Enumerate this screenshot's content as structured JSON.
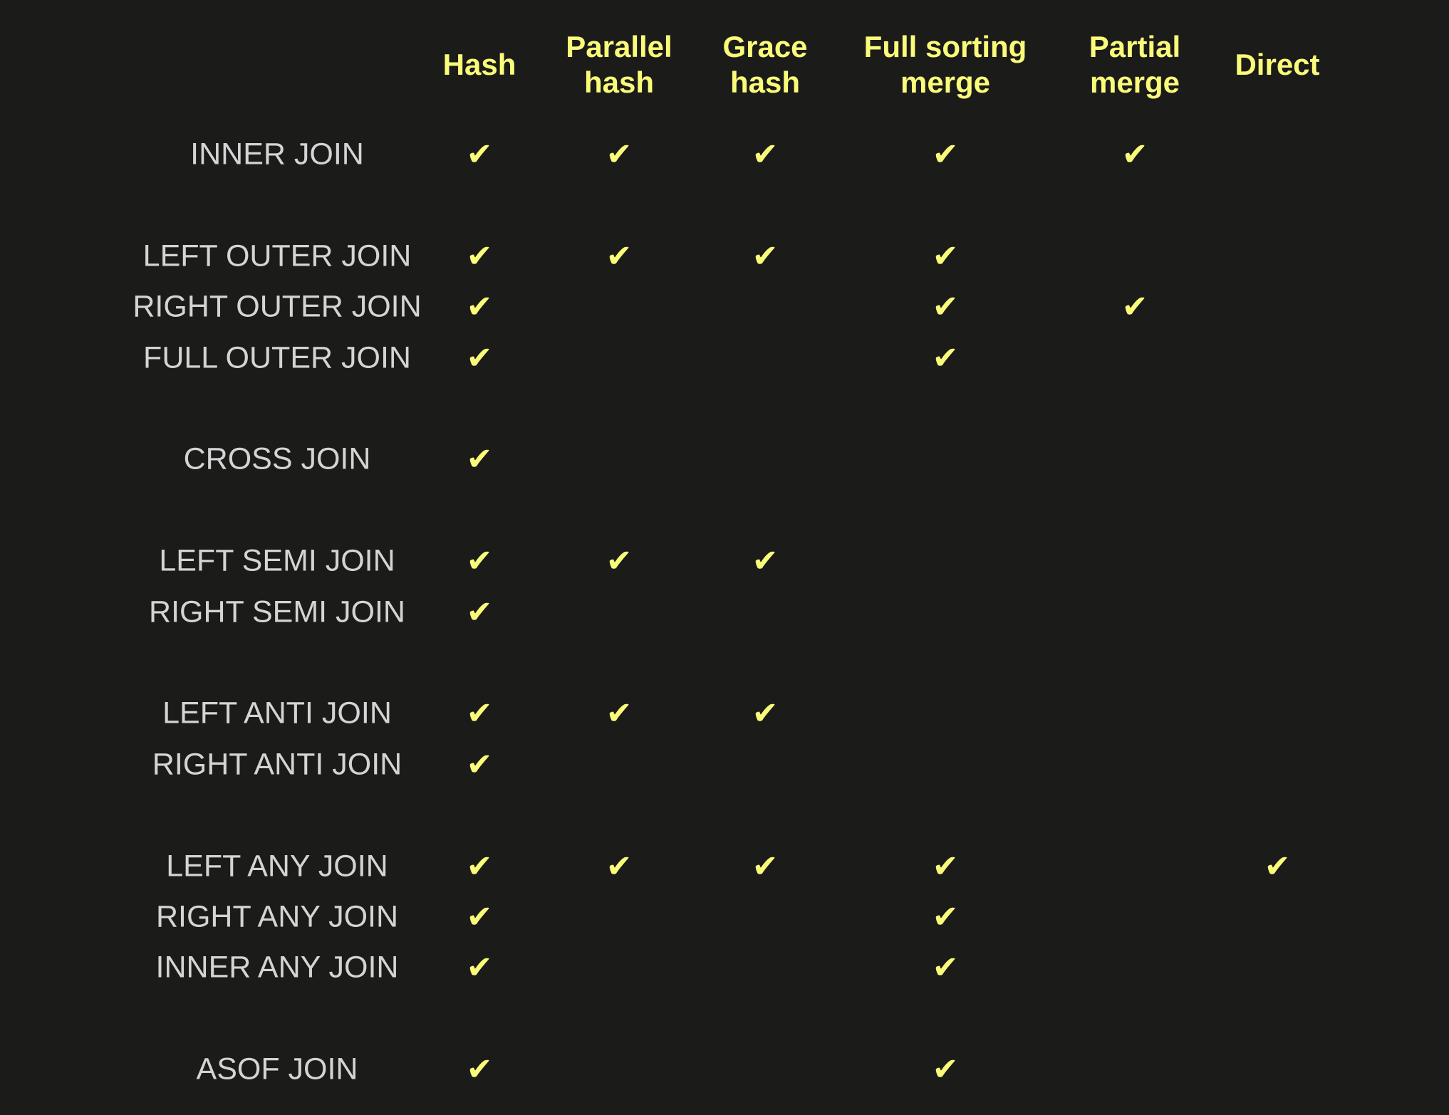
{
  "colors": {
    "background": "#1b1b1a",
    "header": "#fbfb7a",
    "label": "#d4d4d4",
    "check": "#fbfb7a"
  },
  "check_symbol": "✔",
  "check_icon": "checkmark-icon",
  "columns": [
    {
      "label": "Hash"
    },
    {
      "label": "Parallel\nhash"
    },
    {
      "label": "Grace\nhash"
    },
    {
      "label": "Full sorting\nmerge"
    },
    {
      "label": "Partial\nmerge"
    },
    {
      "label": "Direct"
    }
  ],
  "rows": [
    {
      "label": "INNER JOIN",
      "support": [
        true,
        true,
        true,
        true,
        true,
        false
      ]
    },
    null,
    {
      "label": "LEFT OUTER JOIN",
      "support": [
        true,
        true,
        true,
        true,
        false,
        false
      ]
    },
    {
      "label": "RIGHT OUTER JOIN",
      "support": [
        true,
        false,
        false,
        true,
        true,
        false
      ]
    },
    {
      "label": "FULL OUTER JOIN",
      "support": [
        true,
        false,
        false,
        true,
        false,
        false
      ]
    },
    null,
    {
      "label": "CROSS JOIN",
      "support": [
        true,
        false,
        false,
        false,
        false,
        false
      ]
    },
    null,
    {
      "label": "LEFT SEMI JOIN",
      "support": [
        true,
        true,
        true,
        false,
        false,
        false
      ]
    },
    {
      "label": "RIGHT SEMI JOIN",
      "support": [
        true,
        false,
        false,
        false,
        false,
        false
      ]
    },
    null,
    {
      "label": "LEFT ANTI JOIN",
      "support": [
        true,
        true,
        true,
        false,
        false,
        false
      ]
    },
    {
      "label": "RIGHT ANTI JOIN",
      "support": [
        true,
        false,
        false,
        false,
        false,
        false
      ]
    },
    null,
    {
      "label": "LEFT ANY JOIN",
      "support": [
        true,
        true,
        true,
        true,
        false,
        true
      ]
    },
    {
      "label": "RIGHT ANY JOIN",
      "support": [
        true,
        false,
        false,
        true,
        false,
        false
      ]
    },
    {
      "label": "INNER ANY JOIN",
      "support": [
        true,
        false,
        false,
        true,
        false,
        false
      ]
    },
    null,
    {
      "label": "ASOF JOIN",
      "support": [
        true,
        false,
        false,
        true,
        false,
        false
      ]
    }
  ]
}
